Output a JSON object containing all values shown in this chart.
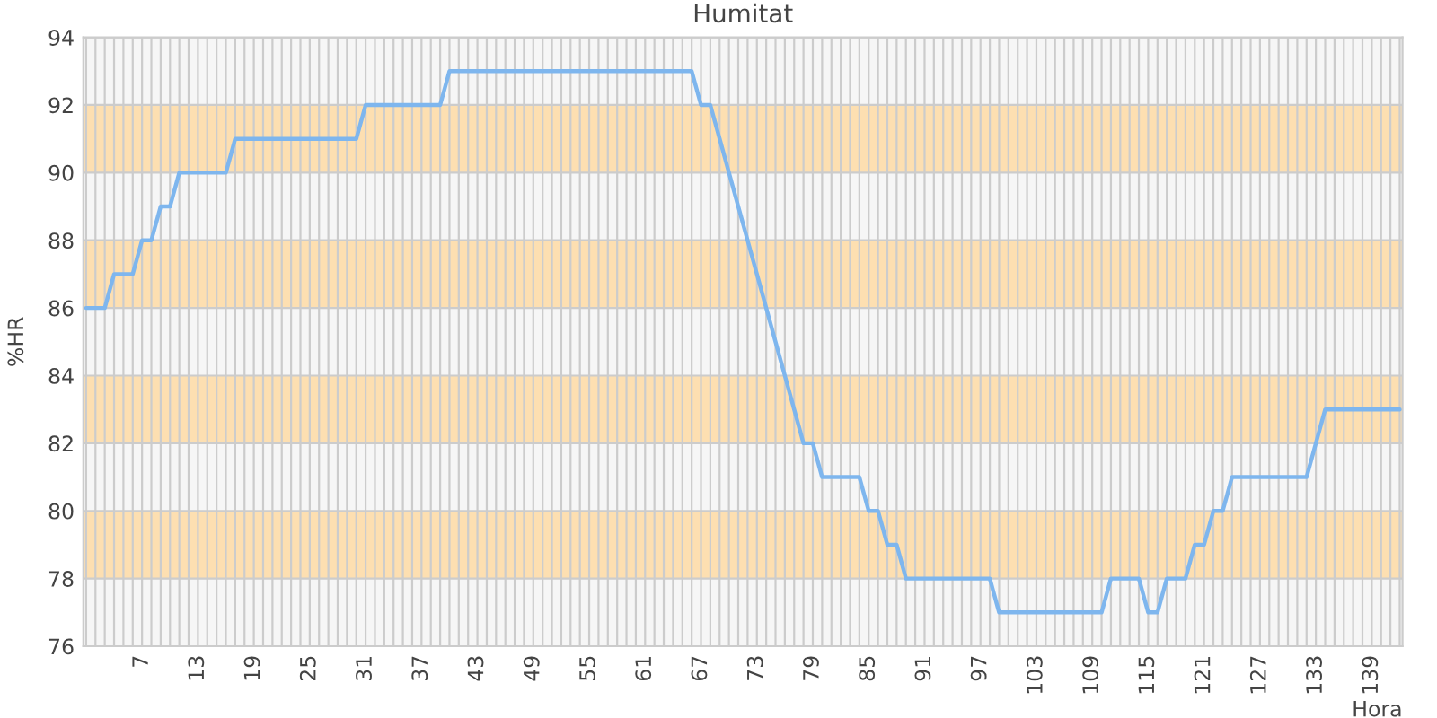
{
  "chart_data": {
    "type": "line",
    "title": "Humitat",
    "xlabel": "Hora",
    "ylabel": "%HR",
    "categories": [
      null,
      null,
      null,
      null,
      null,
      null,
      "7",
      null,
      null,
      null,
      null,
      null,
      "13",
      null,
      null,
      null,
      null,
      null,
      "19",
      null,
      null,
      null,
      null,
      null,
      "25",
      null,
      null,
      null,
      null,
      null,
      "31",
      null,
      null,
      null,
      null,
      null,
      "37",
      null,
      null,
      null,
      null,
      null,
      "43",
      null,
      null,
      null,
      null,
      null,
      "49",
      null,
      null,
      null,
      null,
      null,
      "55",
      null,
      null,
      null,
      null,
      null,
      "61",
      null,
      null,
      null,
      null,
      null,
      "67",
      null,
      null,
      null,
      null,
      null,
      "73",
      null,
      null,
      null,
      null,
      null,
      "79",
      null,
      null,
      null,
      null,
      null,
      "85",
      null,
      null,
      null,
      null,
      null,
      "91",
      null,
      null,
      null,
      null,
      null,
      "97",
      null,
      null,
      null,
      null,
      null,
      "103",
      null,
      null,
      null,
      null,
      null,
      "109",
      null,
      null,
      null,
      null,
      null,
      "115",
      null,
      null,
      null,
      null,
      null,
      "121",
      null,
      null,
      null,
      null,
      null,
      "127",
      null,
      null,
      null,
      null,
      null,
      "133",
      null,
      null,
      null,
      null,
      null,
      "139",
      null,
      null,
      null
    ],
    "series": [
      {
        "color": "#7eb6ee",
        "values": [
          86,
          86,
          86,
          87,
          87,
          87,
          88,
          88,
          89,
          89,
          90,
          90,
          90,
          90,
          90,
          90,
          91,
          91,
          91,
          91,
          91,
          91,
          91,
          91,
          91,
          91,
          91,
          91,
          91,
          91,
          92,
          92,
          92,
          92,
          92,
          92,
          92,
          92,
          92,
          93,
          93,
          93,
          93,
          93,
          93,
          93,
          93,
          93,
          93,
          93,
          93,
          93,
          93,
          93,
          93,
          93,
          93,
          93,
          93,
          93,
          93,
          93,
          93,
          93,
          93,
          93,
          92,
          92,
          91,
          90,
          89,
          88,
          87,
          86,
          85,
          84,
          83,
          82,
          82,
          81,
          81,
          81,
          81,
          81,
          80,
          80,
          79,
          79,
          78,
          78,
          78,
          78,
          78,
          78,
          78,
          78,
          78,
          78,
          77,
          77,
          77,
          77,
          77,
          77,
          77,
          77,
          77,
          77,
          77,
          77,
          78,
          78,
          78,
          78,
          77,
          77,
          78,
          78,
          78,
          79,
          79,
          80,
          80,
          81,
          81,
          81,
          81,
          81,
          81,
          81,
          81,
          81,
          82,
          83,
          83,
          83,
          83,
          83,
          83,
          83,
          83,
          83
        ]
      }
    ],
    "ylim": [
      76,
      94
    ],
    "yticks": [
      76,
      78,
      80,
      82,
      84,
      86,
      88,
      90,
      92,
      94
    ],
    "bands": [
      {
        "axis": "y",
        "from": 78,
        "to": 80,
        "color": "#fddfb1"
      },
      {
        "axis": "y",
        "from": 82,
        "to": 84,
        "color": "#fddfb1"
      },
      {
        "axis": "y",
        "from": 86,
        "to": 88,
        "color": "#fddfb1"
      },
      {
        "axis": "y",
        "from": 90,
        "to": 92,
        "color": "#fddfb1"
      }
    ],
    "grid": true,
    "marker": "none",
    "line_style": "solid",
    "legend": false
  }
}
